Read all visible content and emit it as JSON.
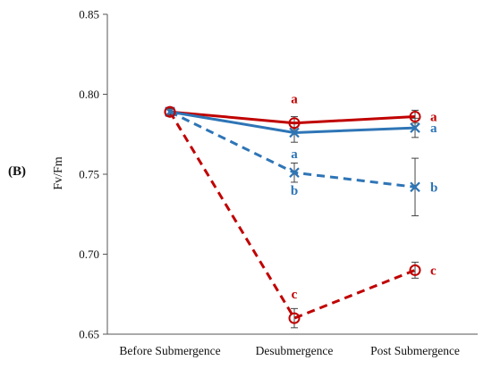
{
  "panel_label": "(B)",
  "chart_data": {
    "type": "line",
    "ylabel": "Fv/Fm",
    "xlabel": "",
    "categories": [
      "Before Submergence",
      "Desubmergence",
      "Post Submergence"
    ],
    "ylim": [
      0.65,
      0.85
    ],
    "yticks": [
      "0.65",
      "0.70",
      "0.75",
      "0.80",
      "0.85"
    ],
    "grid": false,
    "legend": "none",
    "series": [
      {
        "color": "#c00000",
        "line": "solid",
        "marker": "circle",
        "values": [
          0.789,
          0.782,
          0.786
        ],
        "errors": [
          0.002,
          0.004,
          0.004
        ],
        "letters": [
          "",
          "a",
          "a"
        ]
      },
      {
        "color": "#2e75b6",
        "line": "solid",
        "marker": "x",
        "values": [
          0.789,
          0.776,
          0.779
        ],
        "errors": [
          0.002,
          0.006,
          0.006
        ],
        "letters": [
          "",
          "",
          "a"
        ]
      },
      {
        "color": "#2e75b6",
        "line": "dashed",
        "marker": "x",
        "values": [
          0.789,
          0.751,
          0.742
        ],
        "errors": [
          0.002,
          0.006,
          0.018
        ],
        "letters": [
          "",
          "ab",
          "b"
        ]
      },
      {
        "color": "#c00000",
        "line": "dashed",
        "marker": "circle",
        "values": [
          0.789,
          0.66,
          0.69
        ],
        "errors": [
          0.002,
          0.006,
          0.005
        ],
        "letters": [
          "",
          "c",
          "c"
        ]
      }
    ]
  }
}
